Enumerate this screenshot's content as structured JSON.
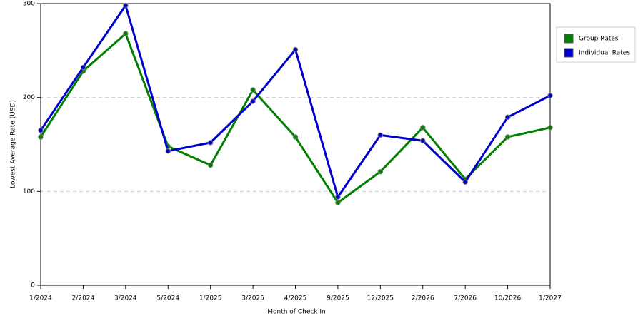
{
  "chart_data": {
    "type": "line",
    "xlabel": "Month of Check In",
    "ylabel": "Lowest Average Rate (USD)",
    "categories": [
      "1/2024",
      "2/2024",
      "3/2024",
      "5/2024",
      "1/2025",
      "3/2025",
      "4/2025",
      "9/2025",
      "12/2025",
      "2/2026",
      "7/2026",
      "10/2026",
      "1/2027"
    ],
    "series": [
      {
        "name": "Group Rates",
        "color": "#008000",
        "values": [
          158,
          228,
          268,
          148,
          128,
          208,
          158,
          88,
          121,
          168,
          113,
          158,
          168
        ]
      },
      {
        "name": "Individual Rates",
        "color": "#0000cc",
        "values": [
          165,
          232,
          298,
          143,
          152,
          196,
          251,
          94,
          160,
          154,
          110,
          179,
          202
        ]
      }
    ],
    "ylim": [
      0,
      300
    ],
    "yticks": [
      0,
      100,
      200,
      300
    ],
    "grid": true,
    "legend": "right"
  }
}
